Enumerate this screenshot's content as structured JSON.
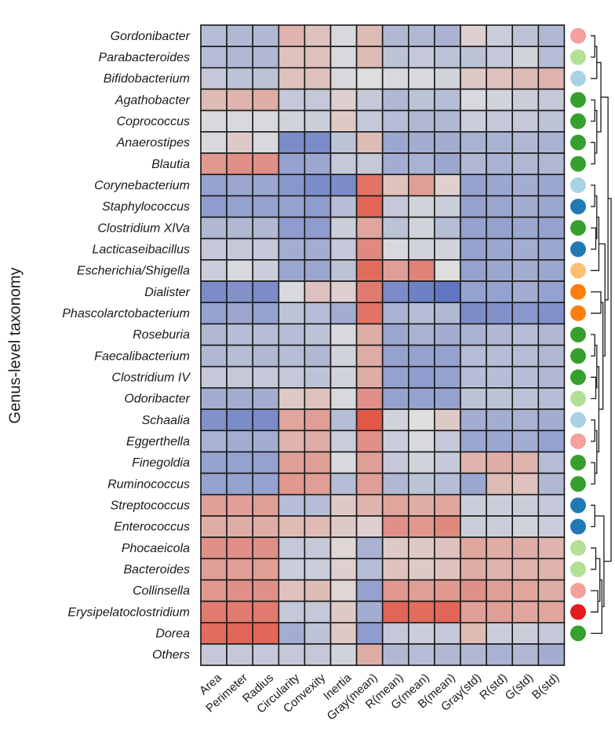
{
  "chart_data": {
    "type": "heatmap",
    "ylabel": "Genus-level taxonomy",
    "xlabel": "",
    "title": "",
    "colormap": {
      "low": "#5a70c2",
      "mid": "#dedede",
      "high": "#e2513f",
      "vmin": -1.0,
      "vmax": 1.0
    },
    "rows": [
      "Gordonibacter",
      "Parabacteroides",
      "Bifidobacterium",
      "Agathobacter",
      "Coprococcus",
      "Anaerostipes",
      "Blautia",
      "Corynebacterium",
      "Staphylococcus",
      "Clostridium XlVa",
      "Lacticaseibacillus",
      "Escherichia/Shigella",
      "Dialister",
      "Phascolarctobacterium",
      "Roseburia",
      "Faecalibacterium",
      "Clostridium IV",
      "Odoribacter",
      "Schaalia",
      "Eggerthella",
      "Finegoldia",
      "Ruminococcus",
      "Streptococcus",
      "Enterococcus",
      "Phocaeicola",
      "Bacteroides",
      "Collinsella",
      "Erysipelatoclostridium",
      "Dorea",
      "Others"
    ],
    "columns": [
      "Area",
      "Perimeter",
      "Radius",
      "Circularity",
      "Convexity",
      "Inertia",
      "Gray(mean)",
      "R(mean)",
      "G(mean)",
      "B(mean)",
      "Gray(std)",
      "R(std)",
      "G(std)",
      "B(std)"
    ],
    "values": [
      [
        -0.3,
        -0.35,
        -0.35,
        0.3,
        0.2,
        -0.05,
        0.25,
        -0.35,
        -0.35,
        -0.4,
        0.1,
        -0.15,
        -0.25,
        -0.35
      ],
      [
        -0.3,
        -0.35,
        -0.35,
        0.2,
        0.2,
        -0.05,
        0.25,
        -0.25,
        -0.2,
        -0.25,
        -0.25,
        -0.2,
        -0.1,
        -0.3
      ],
      [
        -0.2,
        -0.25,
        -0.25,
        0.2,
        0.2,
        -0.05,
        0.0,
        -0.05,
        -0.05,
        -0.1,
        0.15,
        0.2,
        0.25,
        0.3
      ],
      [
        0.25,
        0.3,
        0.35,
        -0.2,
        -0.2,
        0.1,
        -0.2,
        -0.35,
        -0.25,
        -0.3,
        -0.05,
        -0.1,
        -0.15,
        -0.2
      ],
      [
        -0.05,
        -0.05,
        -0.05,
        -0.1,
        -0.15,
        0.15,
        -0.2,
        -0.3,
        -0.35,
        -0.35,
        -0.15,
        -0.2,
        -0.2,
        -0.25
      ],
      [
        -0.05,
        0.15,
        -0.05,
        -0.75,
        -0.75,
        -0.25,
        0.25,
        -0.5,
        -0.45,
        -0.45,
        -0.4,
        -0.4,
        -0.35,
        -0.4
      ],
      [
        0.5,
        0.55,
        0.55,
        -0.55,
        -0.5,
        -0.2,
        -0.2,
        -0.45,
        -0.4,
        -0.5,
        -0.35,
        -0.4,
        -0.35,
        -0.35
      ],
      [
        -0.55,
        -0.5,
        -0.5,
        -0.65,
        -0.75,
        -0.75,
        0.75,
        0.2,
        0.45,
        0.1,
        -0.55,
        -0.5,
        -0.45,
        -0.5
      ],
      [
        -0.6,
        -0.55,
        -0.55,
        -0.55,
        -0.6,
        -0.3,
        0.85,
        -0.2,
        -0.1,
        -0.15,
        -0.55,
        -0.5,
        -0.45,
        -0.5
      ],
      [
        -0.35,
        -0.35,
        -0.35,
        -0.6,
        -0.6,
        -0.15,
        0.4,
        -0.25,
        -0.1,
        -0.3,
        -0.55,
        -0.55,
        -0.5,
        -0.55
      ],
      [
        -0.2,
        -0.2,
        -0.2,
        -0.45,
        -0.45,
        -0.2,
        0.6,
        -0.05,
        -0.1,
        -0.1,
        -0.55,
        -0.5,
        -0.45,
        -0.5
      ],
      [
        -0.15,
        -0.05,
        -0.15,
        -0.5,
        -0.5,
        -0.25,
        0.8,
        0.45,
        0.65,
        0.0,
        -0.55,
        -0.5,
        -0.45,
        -0.5
      ],
      [
        -0.75,
        -0.7,
        -0.75,
        -0.05,
        0.2,
        0.1,
        0.7,
        -0.75,
        -0.85,
        -0.95,
        -0.55,
        -0.55,
        -0.45,
        -0.55
      ],
      [
        -0.55,
        -0.5,
        -0.55,
        -0.25,
        -0.3,
        -0.45,
        0.75,
        -0.4,
        -0.3,
        -0.35,
        -0.75,
        -0.7,
        -0.65,
        -0.7
      ],
      [
        -0.35,
        -0.3,
        -0.3,
        -0.3,
        -0.25,
        -0.05,
        0.35,
        -0.5,
        -0.4,
        -0.45,
        -0.4,
        -0.35,
        -0.3,
        -0.35
      ],
      [
        -0.35,
        -0.3,
        -0.35,
        -0.3,
        -0.35,
        -0.1,
        0.35,
        -0.55,
        -0.55,
        -0.55,
        -0.3,
        -0.3,
        -0.3,
        -0.35
      ],
      [
        -0.2,
        -0.2,
        -0.2,
        -0.2,
        -0.25,
        -0.1,
        0.35,
        -0.55,
        -0.6,
        -0.55,
        -0.3,
        -0.3,
        -0.3,
        -0.35
      ],
      [
        -0.45,
        -0.45,
        -0.45,
        0.15,
        0.2,
        -0.05,
        0.55,
        -0.55,
        -0.55,
        -0.55,
        -0.25,
        -0.25,
        -0.25,
        -0.3
      ],
      [
        -0.7,
        -0.75,
        -0.75,
        0.4,
        0.45,
        -0.3,
        0.95,
        -0.1,
        0.0,
        0.15,
        -0.45,
        -0.45,
        -0.4,
        -0.45
      ],
      [
        -0.4,
        -0.45,
        -0.45,
        0.3,
        0.35,
        -0.15,
        0.55,
        -0.15,
        -0.05,
        -0.2,
        -0.5,
        -0.5,
        -0.45,
        -0.55
      ],
      [
        -0.55,
        -0.55,
        -0.55,
        0.45,
        0.45,
        -0.05,
        0.45,
        -0.2,
        -0.1,
        -0.2,
        0.3,
        0.35,
        0.3,
        -0.3
      ],
      [
        -0.55,
        -0.55,
        -0.55,
        0.5,
        0.45,
        -0.3,
        0.45,
        -0.35,
        -0.25,
        -0.3,
        -0.5,
        0.25,
        0.2,
        -0.35
      ],
      [
        0.45,
        0.45,
        0.45,
        -0.3,
        -0.3,
        0.15,
        0.3,
        0.4,
        0.35,
        0.4,
        -0.15,
        -0.15,
        -0.15,
        -0.2
      ],
      [
        0.35,
        0.35,
        0.35,
        0.25,
        0.25,
        0.15,
        0.1,
        0.55,
        0.5,
        0.6,
        -0.15,
        -0.15,
        -0.1,
        -0.15
      ],
      [
        0.55,
        0.55,
        0.55,
        -0.2,
        -0.2,
        0.05,
        -0.4,
        0.15,
        0.15,
        0.2,
        0.4,
        0.35,
        0.35,
        0.3
      ],
      [
        0.45,
        0.45,
        0.45,
        -0.15,
        -0.15,
        0.1,
        -0.3,
        0.2,
        0.15,
        0.2,
        0.35,
        0.3,
        0.3,
        0.3
      ],
      [
        0.5,
        0.55,
        0.55,
        0.2,
        0.25,
        0.05,
        -0.55,
        0.5,
        0.45,
        0.5,
        0.55,
        0.45,
        0.4,
        0.35
      ],
      [
        0.7,
        0.7,
        0.7,
        -0.2,
        -0.2,
        0.15,
        -0.45,
        0.85,
        0.8,
        0.85,
        0.45,
        0.45,
        0.4,
        0.4
      ],
      [
        0.8,
        0.85,
        0.85,
        -0.45,
        -0.25,
        0.15,
        -0.6,
        -0.2,
        -0.15,
        -0.2,
        0.25,
        -0.15,
        -0.15,
        -0.2
      ],
      [
        -0.2,
        -0.2,
        -0.2,
        -0.2,
        -0.2,
        -0.1,
        0.35,
        -0.35,
        -0.3,
        -0.35,
        -0.35,
        -0.4,
        -0.35,
        -0.45
      ]
    ],
    "row_annotation": {
      "colors": [
        "#f4a09c",
        "#b4df96",
        "#aad2e6",
        "#36a02e",
        "#36a02e",
        "#36a02e",
        "#36a02e",
        "#aad2e6",
        "#2179b4",
        "#36a02e",
        "#2179b4",
        "#fcbf70",
        "#fe7f0e",
        "#fe7f0e",
        "#36a02e",
        "#36a02e",
        "#36a02e",
        "#b4df96",
        "#aad2e6",
        "#f4a09c",
        "#36a02e",
        "#36a02e",
        "#2179b4",
        "#2179b4",
        "#b4df96",
        "#b4df96",
        "#f4a09c",
        "#e31b1c",
        "#36a02e",
        null
      ]
    },
    "dendrogram": {
      "merges": [
        [
          0,
          1,
          0.2
        ],
        [
          30,
          2,
          0.3
        ],
        [
          3,
          4,
          0.2
        ],
        [
          5,
          6,
          0.2
        ],
        [
          32,
          33,
          0.3
        ],
        [
          31,
          34,
          0.5
        ],
        [
          7,
          8,
          0.2
        ],
        [
          9,
          10,
          0.25
        ],
        [
          36,
          37,
          0.3
        ],
        [
          38,
          11,
          0.4
        ],
        [
          12,
          13,
          0.5
        ],
        [
          14,
          15,
          0.2
        ],
        [
          16,
          17,
          0.25
        ],
        [
          41,
          42,
          0.3
        ],
        [
          18,
          19,
          0.2
        ],
        [
          20,
          21,
          0.2
        ],
        [
          44,
          45,
          0.3
        ],
        [
          43,
          46,
          0.4
        ],
        [
          40,
          47,
          0.6
        ],
        [
          39,
          48,
          0.7
        ],
        [
          35,
          49,
          0.85
        ],
        [
          22,
          23,
          0.2
        ],
        [
          24,
          25,
          0.25
        ],
        [
          26,
          27,
          0.35
        ],
        [
          52,
          53,
          0.45
        ],
        [
          54,
          28,
          0.55
        ],
        [
          51,
          55,
          0.65
        ],
        [
          50,
          56,
          1.0
        ]
      ]
    }
  }
}
